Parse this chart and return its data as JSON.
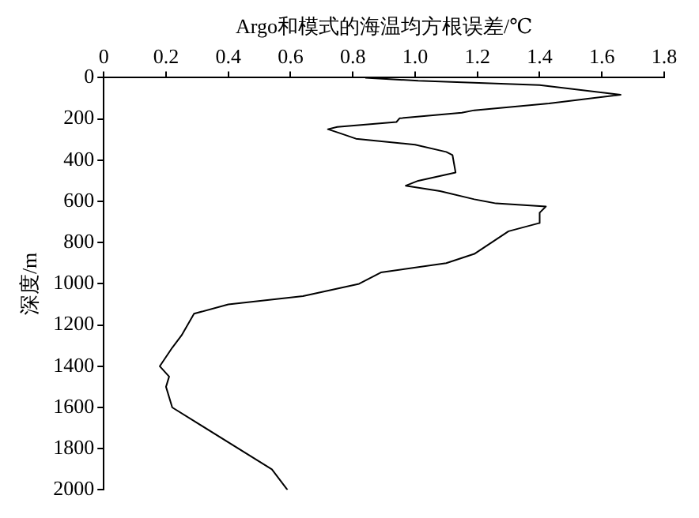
{
  "chart_data": {
    "type": "line",
    "xlabel": "Argo和模式的海温均方根误差/℃",
    "ylabel": "深度/m",
    "xlim": [
      0,
      1.8
    ],
    "xticks": [
      0,
      0.2,
      0.4,
      0.6,
      0.8,
      {
        "value": 1,
        "label": "1.0"
      },
      1.2,
      1.4,
      1.6,
      1.8
    ],
    "ylim": [
      2000,
      0
    ],
    "yticks": [
      0,
      200,
      400,
      600,
      800,
      1000,
      1200,
      1400,
      1600,
      1800,
      2000
    ],
    "grid": false,
    "legend": false,
    "marker": "none",
    "line_style": "solid",
    "series": [
      {
        "color": "#000000",
        "x": [
          0.84,
          1.01,
          1.4,
          1.66,
          1.43,
          1.19,
          1.15,
          0.95,
          0.94,
          0.75,
          0.72,
          0.76,
          0.81,
          1.0,
          1.1,
          1.12,
          1.13,
          1.01,
          0.97,
          1.08,
          1.19,
          1.26,
          1.42,
          1.4,
          1.4,
          1.3,
          1.19,
          1.1,
          0.89,
          0.82,
          0.64,
          0.4,
          0.29,
          0.25,
          0.22,
          0.18,
          0.21,
          0.2,
          0.22,
          0.54,
          0.59
        ],
        "values": [
          0,
          15,
          36,
          83,
          125,
          158,
          170,
          197,
          215,
          239,
          250,
          270,
          296,
          325,
          360,
          375,
          460,
          500,
          524,
          550,
          590,
          610,
          625,
          655,
          705,
          745,
          855,
          900,
          945,
          1000,
          1060,
          1100,
          1145,
          1250,
          1310,
          1400,
          1450,
          1500,
          1600,
          1900,
          2000
        ]
      }
    ]
  }
}
